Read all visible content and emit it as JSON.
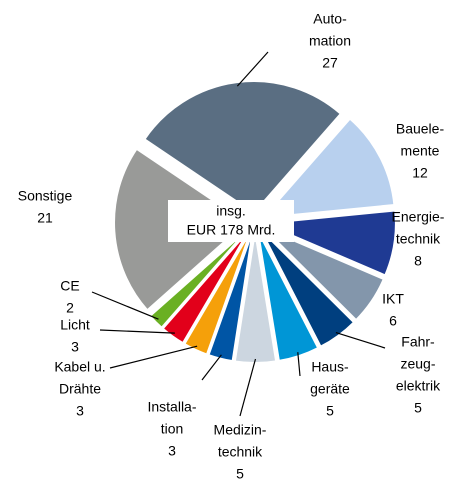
{
  "chart_data": {
    "type": "pie",
    "center_label": [
      "insg.",
      "EUR 178 Mrd."
    ],
    "categories": [
      [
        "Auto-",
        "mation"
      ],
      [
        "Bauele-",
        "mente"
      ],
      [
        "Energie-",
        "technik"
      ],
      [
        "IKT"
      ],
      [
        "Fahr-",
        "zeug-",
        "elektrik"
      ],
      [
        "Haus-",
        "geräte"
      ],
      [
        "Medizin-",
        "technik"
      ],
      [
        "Installa-",
        "tion"
      ],
      [
        "Kabel u.",
        "Drähte"
      ],
      [
        "Licht"
      ],
      [
        "CE"
      ],
      [
        "Sonstige"
      ]
    ],
    "values": [
      27,
      12,
      8,
      6,
      5,
      5,
      5,
      3,
      3,
      3,
      2,
      21
    ],
    "colors": [
      "#5a6e82",
      "#b8d0ee",
      "#1f3a93",
      "#8396ab",
      "#003f7f",
      "#0096d6",
      "#ccd6e0",
      "#0055a5",
      "#f5a00a",
      "#e2001a",
      "#6ab023",
      "#999a98"
    ]
  }
}
